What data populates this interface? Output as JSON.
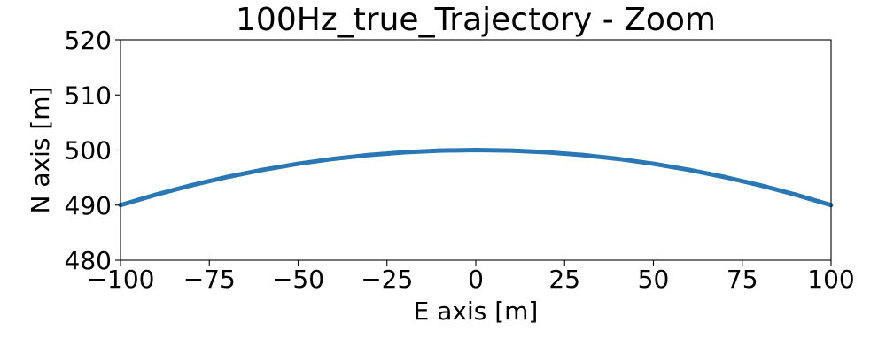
{
  "chart_data": {
    "type": "line",
    "title": "100Hz_true_Trajectory - Zoom",
    "xlabel": "E axis [m]",
    "ylabel": "N axis [m]",
    "xlim": [
      -100,
      100
    ],
    "ylim": [
      480,
      520
    ],
    "x_ticks": [
      "−100",
      "−75",
      "−50",
      "−25",
      "0",
      "25",
      "50",
      "75",
      "100"
    ],
    "y_ticks": [
      "480",
      "490",
      "500",
      "510",
      "520"
    ],
    "grid": false,
    "legend": "none",
    "series": [
      {
        "color": "#2a77b4",
        "x": [
          -100,
          -90,
          -80,
          -70,
          -60,
          -50,
          -40,
          -30,
          -20,
          -10,
          0,
          10,
          20,
          30,
          40,
          50,
          60,
          70,
          80,
          90,
          100
        ],
        "y": [
          490.0,
          491.9,
          493.6,
          495.1,
          496.4,
          497.5,
          498.4,
          499.1,
          499.6,
          499.9,
          500.0,
          499.9,
          499.6,
          499.1,
          498.4,
          497.5,
          496.4,
          495.1,
          493.6,
          491.9,
          490.0
        ]
      }
    ]
  }
}
